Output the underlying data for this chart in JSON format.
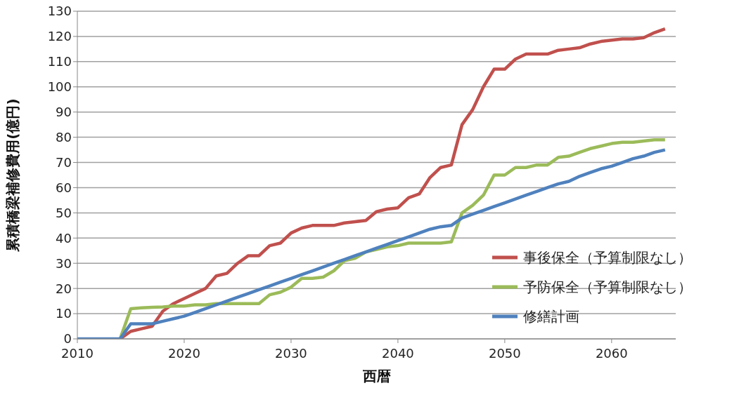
{
  "chart_data": {
    "type": "line",
    "xlabel": "西暦",
    "ylabel": "累積橋梁補修費用(億円)",
    "x": [
      2010,
      2011,
      2012,
      2013,
      2014,
      2015,
      2016,
      2017,
      2018,
      2019,
      2020,
      2021,
      2022,
      2023,
      2024,
      2025,
      2026,
      2027,
      2028,
      2029,
      2030,
      2031,
      2032,
      2033,
      2034,
      2035,
      2036,
      2037,
      2038,
      2039,
      2040,
      2041,
      2042,
      2043,
      2044,
      2045,
      2046,
      2047,
      2048,
      2049,
      2050,
      2051,
      2052,
      2053,
      2054,
      2055,
      2056,
      2057,
      2058,
      2059,
      2060,
      2061,
      2062,
      2063,
      2064,
      2065
    ],
    "series": [
      {
        "name": "事後保全（予算制限なし）",
        "color": "#c0504d",
        "values": [
          null,
          null,
          null,
          null,
          0,
          3,
          4,
          5,
          11,
          14,
          16,
          18,
          20,
          25,
          26,
          30,
          33,
          33,
          37,
          38,
          42,
          44,
          45,
          45,
          45,
          46,
          46.5,
          47,
          50.5,
          51.5,
          52,
          56,
          57.5,
          64,
          68,
          69,
          85,
          91,
          100,
          107,
          107,
          111,
          113,
          113,
          113,
          114.5,
          115,
          115.5,
          117,
          118,
          118.5,
          119,
          119,
          119.5,
          121.5,
          123
        ]
      },
      {
        "name": "予防保全（予算制限なし）",
        "color": "#9bbb59",
        "values": [
          null,
          null,
          null,
          null,
          0,
          12,
          12.3,
          12.5,
          12.7,
          13,
          13,
          13.5,
          13.5,
          14,
          14,
          14,
          14,
          14,
          17.5,
          18.5,
          20.5,
          24,
          24,
          24.5,
          27,
          31,
          32,
          34.5,
          35.5,
          36.5,
          37,
          38,
          38,
          38,
          38,
          38.5,
          50,
          53,
          57,
          65,
          65,
          68,
          68,
          69,
          69,
          72,
          72.5,
          74,
          75.5,
          76.5,
          77.5,
          78,
          78,
          78.5,
          79,
          79
        ]
      },
      {
        "name": "修繕計画",
        "color": "#4f81bd",
        "values": [
          0,
          0,
          0,
          0,
          0,
          6,
          6,
          6,
          7,
          8,
          9,
          10.5,
          12,
          13.5,
          15,
          16.5,
          18,
          19.5,
          21,
          22.5,
          24,
          25.5,
          27,
          28.5,
          30,
          31.5,
          33,
          34.5,
          36,
          37.5,
          39,
          40.5,
          42,
          43.5,
          44.5,
          45,
          48,
          49.5,
          51,
          52.5,
          54,
          55.5,
          57,
          58.5,
          60,
          61.5,
          62.5,
          64.5,
          66,
          67.5,
          68.5,
          70,
          71.5,
          72.5,
          74,
          75
        ]
      }
    ],
    "xlim": [
      2010,
      2066
    ],
    "xticks": [
      2010,
      2020,
      2030,
      2040,
      2050,
      2060
    ],
    "ylim": [
      0,
      130
    ],
    "yticks": [
      0,
      10,
      20,
      30,
      40,
      50,
      60,
      70,
      80,
      90,
      100,
      110,
      120,
      130
    ],
    "grid": "y",
    "legend": "right",
    "marker": "none",
    "line_style": "solid"
  }
}
